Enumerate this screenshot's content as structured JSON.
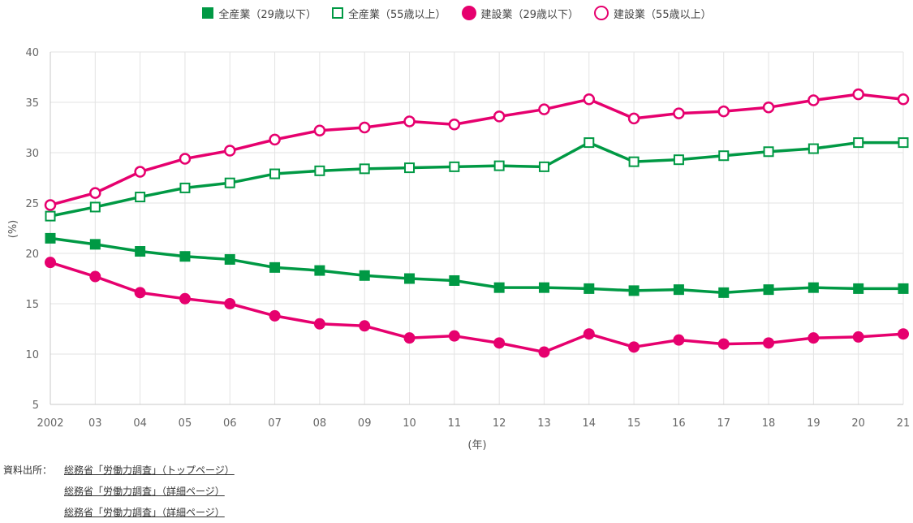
{
  "chart_data": {
    "type": "line",
    "title": "",
    "xlabel": "(年)",
    "ylabel": "(%)",
    "ylim": [
      5,
      40
    ],
    "yticks": [
      5,
      10,
      15,
      20,
      25,
      30,
      35,
      40
    ],
    "categories": [
      "2002",
      "03",
      "04",
      "05",
      "06",
      "07",
      "08",
      "09",
      "10",
      "11",
      "12",
      "13",
      "14",
      "15",
      "16",
      "17",
      "18",
      "19",
      "20",
      "21"
    ],
    "legend_position": "top-center",
    "grid": true,
    "series": [
      {
        "name": "全産業（29歳以下）",
        "color": "#009944",
        "marker": "square",
        "filled": true,
        "values": [
          21.5,
          20.9,
          20.2,
          19.7,
          19.4,
          18.6,
          18.3,
          17.8,
          17.5,
          17.3,
          16.6,
          16.6,
          16.5,
          16.3,
          16.4,
          16.1,
          16.4,
          16.6,
          16.5,
          16.5
        ]
      },
      {
        "name": "全産業（55歳以上）",
        "color": "#009944",
        "marker": "square",
        "filled": false,
        "values": [
          23.7,
          24.6,
          25.6,
          26.5,
          27.0,
          27.9,
          28.2,
          28.4,
          28.5,
          28.6,
          28.7,
          28.6,
          31.0,
          29.1,
          29.3,
          29.7,
          30.1,
          30.4,
          31.0,
          31.0
        ]
      },
      {
        "name": "建設業（29歳以下）",
        "color": "#e6006e",
        "marker": "circle",
        "filled": true,
        "values": [
          19.1,
          17.7,
          16.1,
          15.5,
          15.0,
          13.8,
          13.0,
          12.8,
          11.6,
          11.8,
          11.1,
          10.2,
          12.0,
          10.7,
          11.4,
          11.0,
          11.1,
          11.6,
          11.7,
          12.0
        ]
      },
      {
        "name": "建設業（55歳以上）",
        "color": "#e6006e",
        "marker": "circle",
        "filled": false,
        "values": [
          24.8,
          26.0,
          28.1,
          29.4,
          30.2,
          31.3,
          32.2,
          32.5,
          33.1,
          32.8,
          33.6,
          34.3,
          35.3,
          33.4,
          33.9,
          34.1,
          34.5,
          35.2,
          35.8,
          35.3
        ]
      }
    ]
  },
  "sources": {
    "prefix": "資料出所：",
    "links": [
      "総務省「労働力調査」（トップページ）",
      "総務省「労働力調査」（詳細ページ）",
      "総務省「労働力調査」（詳細ページ）"
    ]
  }
}
